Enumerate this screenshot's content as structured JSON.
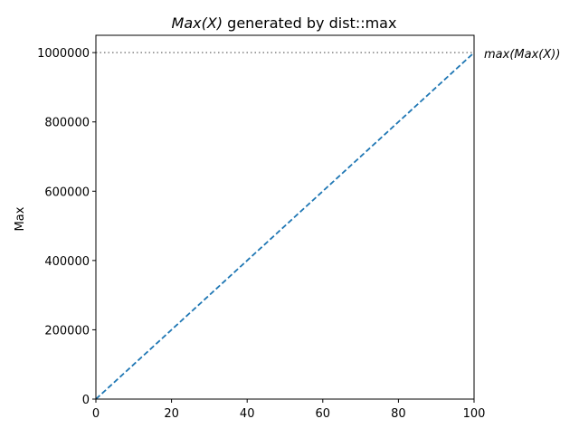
{
  "chart_data": {
    "type": "line",
    "title": {
      "italic_part": "Max(X)",
      "rest": " generated by dist::max"
    },
    "xlabel": "",
    "ylabel": "Max",
    "xlim": [
      0,
      100
    ],
    "ylim": [
      0,
      1050000
    ],
    "x_ticks": [
      0,
      20,
      40,
      60,
      80,
      100
    ],
    "y_ticks": [
      0,
      200000,
      400000,
      600000,
      800000,
      1000000
    ],
    "grid": false,
    "series": [
      {
        "style": "dashed",
        "color": "#1f77b4",
        "x": [
          0,
          100
        ],
        "y": [
          0,
          1000000
        ]
      }
    ],
    "reference_lines": [
      {
        "orientation": "horizontal",
        "y": 1000000,
        "style": "dotted",
        "color": "#808080",
        "label": "max(Max(X))"
      }
    ]
  }
}
